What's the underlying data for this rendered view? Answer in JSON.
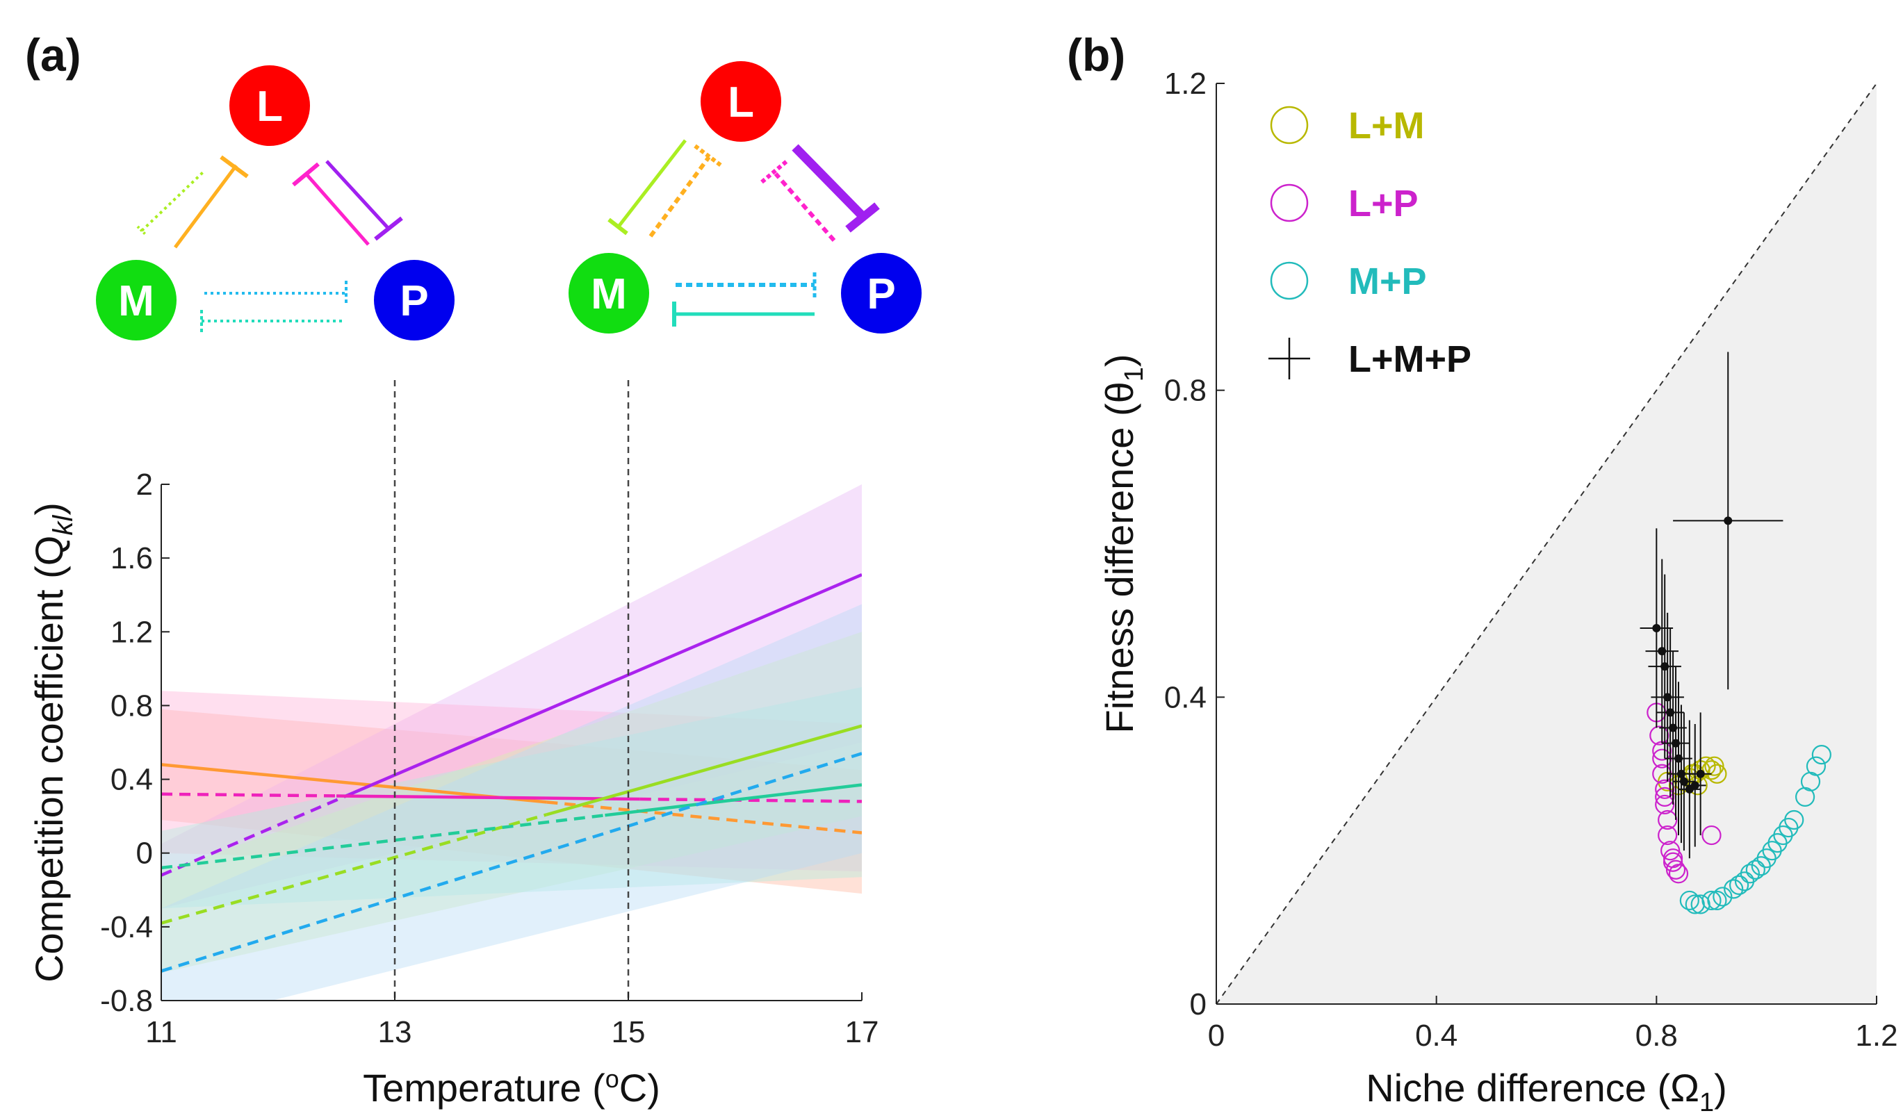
{
  "panels": {
    "a_label": "(a)",
    "b_label": "(b)"
  },
  "network": {
    "nodes": [
      {
        "id": "L",
        "color": "#ff0000"
      },
      {
        "id": "M",
        "color": "#11dd11"
      },
      {
        "id": "P",
        "color": "#0000ee"
      }
    ],
    "interaction_colors": {
      "L_on_M": "#ffb020",
      "M_on_L": "#aaee22",
      "L_on_P": "#a020f0",
      "P_on_L": "#ff22cc",
      "M_on_P": "#22ddbb",
      "P_on_M": "#22bbee"
    }
  },
  "chart_data": [
    {
      "panel": "(a)",
      "type": "line",
      "xlabel": "Temperature (",
      "xlabel_sup": "o",
      "xlabel_end": "C)",
      "ylabel": "Competition coefficient (Q",
      "ylabel_sub": "kl",
      "ylabel_end": ")",
      "xlim": [
        11,
        17
      ],
      "ylim": [
        -0.8,
        2
      ],
      "xticks": [
        "11",
        "13",
        "15",
        "17"
      ],
      "yticks": [
        "-0.8",
        "-0.4",
        "0",
        "0.4",
        "0.8",
        "1.2",
        "1.6",
        "2"
      ],
      "vlines": [
        13,
        15
      ],
      "series": [
        {
          "color": "#ff9933",
          "x": [
            11,
            17
          ],
          "y": [
            0.48,
            0.11
          ],
          "solid_until": 14.3,
          "band_lower": [
            0.18,
            -0.22
          ],
          "band_upper": [
            0.78,
            0.45
          ],
          "band_color": "#ffb8a0"
        },
        {
          "color": "#aa22ee",
          "x": [
            11,
            17
          ],
          "y": [
            -0.12,
            1.51
          ],
          "solid_from": 12.6,
          "band_lower": [
            -0.3,
            0.6
          ],
          "band_upper": [
            0.05,
            2.0
          ],
          "band_color": "#e6b8f5"
        },
        {
          "color": "#ee22bb",
          "x": [
            11,
            17
          ],
          "y": [
            0.32,
            0.28
          ],
          "solid_from": 12.5,
          "solid_until": 15.1,
          "band_lower": [
            0.0,
            -0.1
          ],
          "band_upper": [
            0.88,
            0.7
          ],
          "band_color": "#ffb3d9"
        },
        {
          "color": "#99dd22",
          "x": [
            11,
            17
          ],
          "y": [
            -0.38,
            0.69
          ],
          "solid_from": 14.3,
          "band_lower": [
            -0.65,
            0.2
          ],
          "band_upper": [
            -0.1,
            1.2
          ],
          "band_color": "#d6f0b0"
        },
        {
          "color": "#22cc99",
          "x": [
            11,
            17
          ],
          "y": [
            -0.08,
            0.37
          ],
          "solid_from": 14.8,
          "band_lower": [
            -0.3,
            -0.13
          ],
          "band_upper": [
            0.12,
            0.9
          ],
          "band_color": "#b0eedd"
        },
        {
          "color": "#22aaee",
          "x": [
            11,
            17
          ],
          "y": [
            -0.64,
            0.54
          ],
          "solid_from": 17.1,
          "band_lower": [
            -0.95,
            0.0
          ],
          "band_upper": [
            -0.3,
            1.35
          ],
          "band_color": "#b8dcf5"
        }
      ]
    },
    {
      "panel": "(b)",
      "type": "scatter",
      "xlabel": "Niche difference (",
      "xlabel_sym": "Ω",
      "xlabel_sub": "1",
      "xlabel_end": ")",
      "ylabel": "Fitness difference (",
      "ylabel_sym": "θ",
      "ylabel_sub": "1",
      "ylabel_end": ")",
      "xlim": [
        0,
        1.2
      ],
      "ylim": [
        0,
        1.2
      ],
      "xticks": [
        "0",
        "0.4",
        "0.8",
        "1.2"
      ],
      "yticks": [
        "0",
        "0.4",
        "0.8",
        "1.2"
      ],
      "diagonal": "1:1 line",
      "legend_position": "top-left",
      "series": [
        {
          "name": "L+M",
          "color": "#b8b800",
          "marker": "circle",
          "x": [
            0.82,
            0.84,
            0.85,
            0.86,
            0.87,
            0.88,
            0.89,
            0.9,
            0.905,
            0.91,
            0.875,
            0.865
          ],
          "y": [
            0.29,
            0.285,
            0.29,
            0.295,
            0.3,
            0.305,
            0.31,
            0.305,
            0.31,
            0.3,
            0.285,
            0.3
          ]
        },
        {
          "name": "L+P",
          "color": "#cc22cc",
          "marker": "circle",
          "x": [
            0.8,
            0.805,
            0.81,
            0.81,
            0.815,
            0.815,
            0.82,
            0.82,
            0.825,
            0.83,
            0.835,
            0.84,
            0.81,
            0.815,
            0.83,
            0.9
          ],
          "y": [
            0.38,
            0.35,
            0.32,
            0.3,
            0.28,
            0.26,
            0.24,
            0.22,
            0.2,
            0.185,
            0.175,
            0.17,
            0.33,
            0.27,
            0.19,
            0.22
          ]
        },
        {
          "name": "M+P",
          "color": "#22bbbb",
          "marker": "circle",
          "x": [
            0.86,
            0.88,
            0.9,
            0.92,
            0.94,
            0.96,
            0.97,
            0.99,
            1.0,
            1.02,
            1.03,
            1.05,
            1.07,
            1.08,
            1.09,
            1.1,
            0.87,
            0.91,
            0.95,
            0.98,
            1.01,
            1.04
          ],
          "y": [
            0.135,
            0.13,
            0.135,
            0.14,
            0.15,
            0.16,
            0.17,
            0.18,
            0.19,
            0.21,
            0.22,
            0.24,
            0.27,
            0.29,
            0.31,
            0.325,
            0.13,
            0.135,
            0.155,
            0.175,
            0.2,
            0.23
          ]
        },
        {
          "name": "L+M+P",
          "color": "#111111",
          "marker": "errorbar",
          "x": [
            0.8,
            0.81,
            0.815,
            0.82,
            0.825,
            0.83,
            0.835,
            0.84,
            0.845,
            0.85,
            0.86,
            0.87,
            0.88,
            0.93
          ],
          "y": [
            0.49,
            0.46,
            0.44,
            0.4,
            0.38,
            0.36,
            0.34,
            0.32,
            0.3,
            0.29,
            0.28,
            0.285,
            0.3,
            0.63
          ],
          "xerr": [
            0.03,
            0.03,
            0.03,
            0.03,
            0.025,
            0.025,
            0.025,
            0.025,
            0.025,
            0.02,
            0.02,
            0.02,
            0.02,
            0.1
          ],
          "yerr": [
            0.13,
            0.12,
            0.12,
            0.11,
            0.11,
            0.1,
            0.1,
            0.1,
            0.09,
            0.09,
            0.09,
            0.08,
            0.08,
            0.22
          ]
        }
      ]
    }
  ]
}
